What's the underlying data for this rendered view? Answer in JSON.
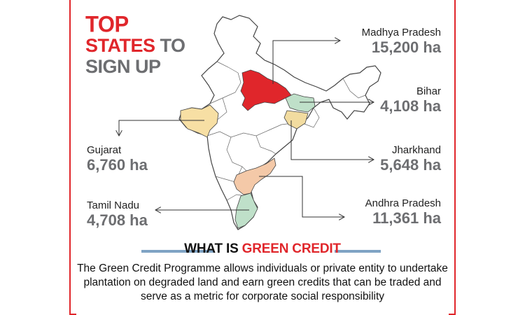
{
  "title": {
    "line1": "TOP",
    "line2_red": "STATES",
    "line2_grey": " TO",
    "line3": "SIGN UP"
  },
  "states": [
    {
      "name": "Madhya Pradesh",
      "value": "15,200 ha",
      "color": "#e0262b"
    },
    {
      "name": "Bihar",
      "value": "4,108 ha",
      "color": "#bfe0c9"
    },
    {
      "name": "Jharkhand",
      "value": "5,648 ha",
      "color": "#f2dca0"
    },
    {
      "name": "Andhra Pradesh",
      "value": "11,361 ha",
      "color": "#f4c9a8"
    },
    {
      "name": "Tamil Nadu",
      "value": "4,708 ha",
      "color": "#bfe0c9"
    },
    {
      "name": "Gujarat",
      "value": "6,760 ha",
      "color": "#f7dfa4"
    }
  ],
  "section": {
    "title_prefix": "WHAT IS ",
    "title_highlight": "GREEN CREDIT",
    "bar_color": "#7fa3c4"
  },
  "description": "The Green Credit Programme allows individuals or private entity to undertake plantation on degraded land and earn green credits that can be traded and serve as a metric for corporate social responsibility",
  "colors": {
    "accent": "#e0262b",
    "value_grey": "#6d6e71",
    "border": "#e0262b"
  }
}
